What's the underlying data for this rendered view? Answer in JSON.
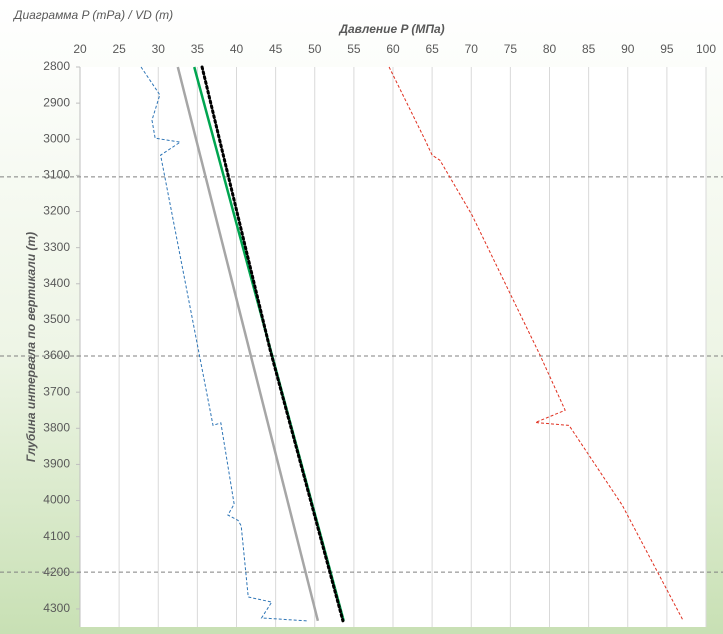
{
  "chart_data": {
    "type": "line",
    "title": "Диаграмма P (mPa) / VD (m)",
    "x_label": "Давление P (МПа)",
    "y_label": "Глубина интервала по вертикали (m)",
    "xlim": [
      20,
      100
    ],
    "xticks": [
      20,
      25,
      30,
      35,
      40,
      45,
      50,
      55,
      60,
      65,
      70,
      75,
      80,
      85,
      90,
      95,
      100
    ],
    "ylim": [
      2800,
      4350
    ],
    "yticks": [
      2800,
      2900,
      3000,
      3100,
      3200,
      3300,
      3400,
      3500,
      3600,
      3700,
      3800,
      3900,
      4000,
      4100,
      4200,
      4300
    ],
    "y_inverted": true,
    "x_axis_position": "top",
    "grid": true,
    "hlines": [
      3104,
      3600,
      4198
    ],
    "series": [
      {
        "color": "#2e75b6",
        "style": "dashed",
        "x": [
          27.8,
          30.2,
          29.2,
          29.6,
          32.8,
          30.3,
          37.0,
          38.0,
          39.7,
          38.9,
          40.2,
          40.6,
          41.5,
          44.5,
          43.2,
          49.0
        ],
        "values": [
          2800,
          2877,
          2947,
          2997,
          3008,
          3044,
          3792,
          3785,
          4010,
          4040,
          4055,
          4070,
          4267,
          4281,
          4325,
          4333
        ]
      },
      {
        "color": "#a6a6a6",
        "style": "solid",
        "x": [
          32.5,
          50.4
        ],
        "values": [
          2800,
          4333
        ]
      },
      {
        "color": "#00a550",
        "style": "solid",
        "x": [
          34.6,
          53.7
        ],
        "values": [
          2800,
          4333
        ]
      },
      {
        "color": "#000000",
        "style": "dotted",
        "x": [
          35.6,
          44.3,
          53.6
        ],
        "values": [
          2800,
          3583,
          4333
        ]
      },
      {
        "color": "#e03020",
        "style": "dashed",
        "x": [
          59.5,
          64.1,
          65.0,
          66.0,
          70.1,
          78.8,
          82.0,
          78.2,
          82.5,
          89.3,
          97.1
        ],
        "values": [
          2800,
          3002,
          3044,
          3058,
          3210,
          3598,
          3750,
          3784,
          3792,
          4013,
          4333
        ]
      }
    ]
  }
}
